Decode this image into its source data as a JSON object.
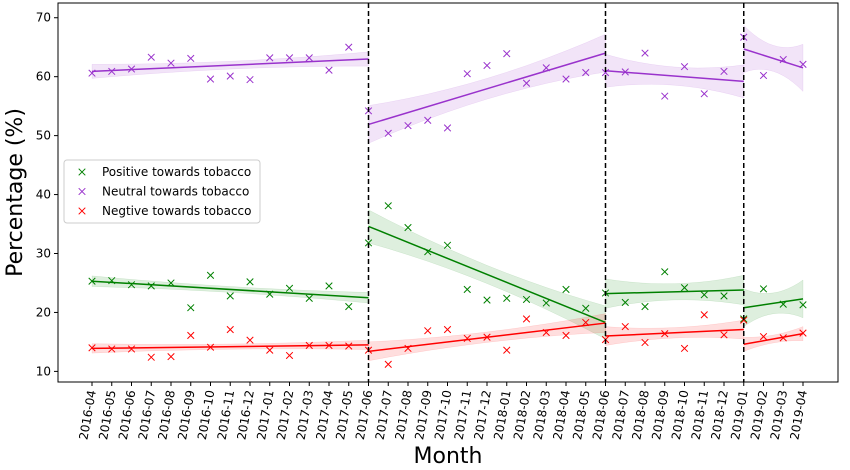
{
  "chart_data": {
    "type": "line",
    "xlabel": "Month",
    "ylabel": "Percentage (%)",
    "ylim": [
      8.2,
      72.5
    ],
    "yticks": [
      10,
      20,
      30,
      40,
      50,
      60,
      70
    ],
    "categories": [
      "2016-04",
      "2016-05",
      "2016-06",
      "2016-07",
      "2016-08",
      "2016-09",
      "2016-10",
      "2016-11",
      "2016-12",
      "2017-01",
      "2017-02",
      "2017-03",
      "2017-04",
      "2017-05",
      "2017-06",
      "2017-07",
      "2017-08",
      "2017-09",
      "2017-10",
      "2017-11",
      "2017-12",
      "2018-01",
      "2018-02",
      "2018-03",
      "2018-04",
      "2018-05",
      "2018-06",
      "2018-07",
      "2018-08",
      "2018-09",
      "2018-10",
      "2018-11",
      "2018-12",
      "2019-01",
      "2019-02",
      "2019-03",
      "2019-04"
    ],
    "breakpoints": [
      "2017-06",
      "2018-06",
      "2019-01"
    ],
    "grid": false,
    "legend_position": "center-left",
    "series": [
      {
        "name": "Positive towards tobacco",
        "color": "#008000",
        "values": [
          25.3,
          25.4,
          24.7,
          24.5,
          25.0,
          20.8,
          26.3,
          22.8,
          25.2,
          23.1,
          24.1,
          22.4,
          24.5,
          21.0,
          31.8,
          38.1,
          34.4,
          30.3,
          31.4,
          23.9,
          22.1,
          22.4,
          22.2,
          21.6,
          23.9,
          20.7,
          23.3,
          21.7,
          21.0,
          26.9,
          24.2,
          23.0,
          22.8,
          18.9,
          24.0,
          21.4,
          21.3
        ],
        "segments": [
          {
            "from": "2016-04",
            "to": "2017-06",
            "start": 25.3,
            "end": 22.5,
            "band": 0.9
          },
          {
            "from": "2017-06",
            "to": "2018-06",
            "start": 34.6,
            "end": 18.3,
            "band": 2.8
          },
          {
            "from": "2018-06",
            "to": "2019-01",
            "start": 23.2,
            "end": 23.8,
            "band": 2.5
          },
          {
            "from": "2019-01",
            "to": "2019-04",
            "start": 20.8,
            "end": 22.3,
            "band": 3.2
          }
        ]
      },
      {
        "name": "Neutral towards tobacco",
        "color": "#9932cc",
        "values": [
          60.6,
          60.9,
          61.3,
          63.3,
          62.3,
          63.1,
          59.6,
          60.1,
          59.5,
          63.2,
          63.2,
          63.2,
          61.1,
          65.0,
          54.2,
          50.4,
          51.7,
          52.6,
          51.3,
          60.5,
          61.9,
          63.9,
          58.9,
          61.5,
          59.6,
          60.7,
          60.7,
          60.8,
          64.0,
          56.7,
          61.7,
          57.1,
          60.9,
          66.7,
          60.2,
          62.9,
          62.1
        ],
        "segments": [
          {
            "from": "2016-04",
            "to": "2017-06",
            "start": 60.9,
            "end": 63.0,
            "band": 1.2
          },
          {
            "from": "2017-06",
            "to": "2018-06",
            "start": 51.9,
            "end": 64.0,
            "band": 3.2
          },
          {
            "from": "2018-06",
            "to": "2019-01",
            "start": 61.0,
            "end": 59.2,
            "band": 2.8
          },
          {
            "from": "2019-01",
            "to": "2019-04",
            "start": 64.7,
            "end": 61.5,
            "band": 4.0
          }
        ]
      },
      {
        "name": "Negtive towards tobacco",
        "color": "#ff0000",
        "values": [
          14.0,
          13.8,
          13.8,
          12.4,
          12.5,
          16.1,
          14.1,
          17.1,
          15.3,
          13.6,
          12.7,
          14.4,
          14.4,
          14.3,
          13.6,
          11.2,
          13.9,
          16.9,
          17.1,
          15.6,
          15.8,
          13.6,
          18.9,
          16.6,
          16.1,
          18.3,
          15.4,
          17.6,
          14.9,
          16.4,
          13.9,
          19.6,
          16.2,
          18.7,
          15.9,
          15.7,
          16.5
        ],
        "segments": [
          {
            "from": "2016-04",
            "to": "2017-06",
            "start": 13.9,
            "end": 14.5,
            "band": 0.8
          },
          {
            "from": "2017-06",
            "to": "2018-06",
            "start": 13.4,
            "end": 18.2,
            "band": 1.6
          },
          {
            "from": "2018-06",
            "to": "2019-01",
            "start": 16.0,
            "end": 17.1,
            "band": 1.6
          },
          {
            "from": "2019-01",
            "to": "2019-04",
            "start": 14.6,
            "end": 16.4,
            "band": 1.2
          }
        ]
      }
    ]
  }
}
